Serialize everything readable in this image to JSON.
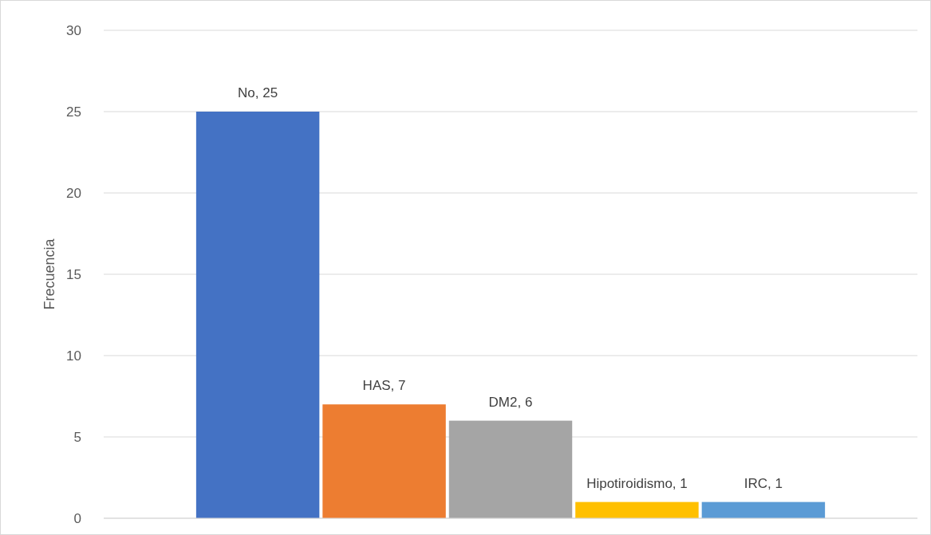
{
  "chart_data": {
    "type": "bar",
    "ylabel": "Frecuencia",
    "categories": [
      null
    ],
    "ylim": [
      0,
      30
    ],
    "yticks": [
      0,
      5,
      10,
      15,
      20,
      25,
      30
    ],
    "grid": "y",
    "series": [
      {
        "color": "#4472c4",
        "values": [
          25
        ],
        "value_labels": [
          "No, 25"
        ]
      },
      {
        "color": "#ed7d31",
        "values": [
          7
        ],
        "value_labels": [
          "HAS, 7"
        ]
      },
      {
        "color": "#a5a5a5",
        "values": [
          6
        ],
        "value_labels": [
          "DM2, 6"
        ]
      },
      {
        "color": "#ffc000",
        "values": [
          1
        ],
        "value_labels": [
          "Hipotiroidismo, 1"
        ]
      },
      {
        "color": "#5b9bd5",
        "values": [
          1
        ],
        "value_labels": [
          "IRC, 1"
        ]
      }
    ]
  }
}
